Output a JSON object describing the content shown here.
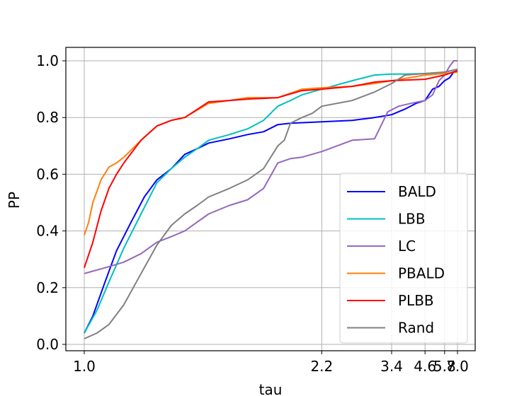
{
  "chart_data": {
    "type": "line",
    "xlabel": "tau",
    "ylabel": "PP",
    "xscale": "reciprocal",
    "xlim": [
      1.0,
      7.0
    ],
    "ylim": [
      0.0,
      1.0
    ],
    "xticks": [
      1.0,
      2.2,
      3.4,
      4.6,
      5.8,
      7.0
    ],
    "xtick_labels": [
      "1.0",
      "2.2",
      "3.4",
      "4.6",
      "5.8",
      "7.0"
    ],
    "yticks": [
      0.0,
      0.2,
      0.4,
      0.6,
      0.8,
      1.0
    ],
    "ytick_labels": [
      "0.0",
      "0.2",
      "0.4",
      "0.6",
      "0.8",
      "1.0"
    ],
    "grid": true,
    "legend_position": "lower-right",
    "series": [
      {
        "name": "BALD",
        "color": "#0000ff",
        "x": [
          1.0,
          1.02,
          1.05,
          1.08,
          1.12,
          1.16,
          1.2,
          1.25,
          1.3,
          1.35,
          1.4,
          1.5,
          1.6,
          1.7,
          1.8,
          1.9,
          2.2,
          2.6,
          3.0,
          3.4,
          3.8,
          4.2,
          4.6,
          5.0,
          5.4,
          5.8,
          6.2,
          6.6,
          7.0
        ],
        "y": [
          0.04,
          0.1,
          0.22,
          0.33,
          0.43,
          0.52,
          0.58,
          0.62,
          0.67,
          0.69,
          0.71,
          0.725,
          0.74,
          0.75,
          0.775,
          0.78,
          0.785,
          0.79,
          0.8,
          0.81,
          0.83,
          0.85,
          0.86,
          0.9,
          0.91,
          0.93,
          0.94,
          0.96,
          0.965
        ]
      },
      {
        "name": "LBB",
        "color": "#00bfbf",
        "x": [
          1.0,
          1.03,
          1.06,
          1.1,
          1.15,
          1.2,
          1.25,
          1.3,
          1.35,
          1.4,
          1.5,
          1.6,
          1.7,
          1.8,
          1.9,
          2.0,
          2.2,
          2.6,
          3.0,
          3.4,
          3.8,
          4.6,
          5.8,
          7.0
        ],
        "y": [
          0.04,
          0.12,
          0.22,
          0.34,
          0.46,
          0.57,
          0.62,
          0.66,
          0.69,
          0.72,
          0.74,
          0.76,
          0.79,
          0.84,
          0.86,
          0.88,
          0.9,
          0.93,
          0.95,
          0.953,
          0.953,
          0.955,
          0.96,
          0.97
        ]
      },
      {
        "name": "LC",
        "color": "#9467bd",
        "x": [
          1.0,
          1.05,
          1.1,
          1.15,
          1.2,
          1.25,
          1.3,
          1.4,
          1.5,
          1.6,
          1.7,
          1.8,
          1.9,
          2.0,
          2.2,
          2.6,
          3.0,
          3.3,
          3.6,
          4.0,
          4.6,
          5.0,
          5.4,
          5.8,
          6.2,
          6.6,
          7.0
        ],
        "y": [
          0.25,
          0.27,
          0.29,
          0.32,
          0.36,
          0.38,
          0.4,
          0.46,
          0.49,
          0.51,
          0.55,
          0.64,
          0.655,
          0.66,
          0.68,
          0.72,
          0.725,
          0.82,
          0.84,
          0.85,
          0.86,
          0.88,
          0.93,
          0.95,
          0.98,
          1.0,
          1.0
        ]
      },
      {
        "name": "PBALD",
        "color": "#ff7f0e",
        "x": [
          1.0,
          1.01,
          1.02,
          1.04,
          1.06,
          1.08,
          1.1,
          1.15,
          1.2,
          1.25,
          1.3,
          1.4,
          1.5,
          1.6,
          1.8,
          2.0,
          2.2,
          2.6,
          3.0,
          3.4,
          4.6,
          5.8,
          7.0
        ],
        "y": [
          0.385,
          0.43,
          0.5,
          0.58,
          0.625,
          0.64,
          0.66,
          0.72,
          0.77,
          0.79,
          0.8,
          0.85,
          0.86,
          0.87,
          0.87,
          0.9,
          0.905,
          0.91,
          0.92,
          0.93,
          0.95,
          0.955,
          0.96
        ]
      },
      {
        "name": "PLBB",
        "color": "#ff0000",
        "x": [
          1.0,
          1.02,
          1.04,
          1.06,
          1.08,
          1.1,
          1.15,
          1.2,
          1.25,
          1.3,
          1.4,
          1.5,
          1.6,
          1.8,
          2.0,
          2.2,
          2.6,
          3.0,
          3.4,
          4.6,
          5.8,
          7.0
        ],
        "y": [
          0.27,
          0.36,
          0.47,
          0.55,
          0.6,
          0.64,
          0.72,
          0.77,
          0.79,
          0.8,
          0.855,
          0.86,
          0.865,
          0.87,
          0.895,
          0.9,
          0.91,
          0.925,
          0.93,
          0.935,
          0.95,
          0.965
        ]
      },
      {
        "name": "Rand",
        "color": "#808080",
        "x": [
          1.0,
          1.03,
          1.06,
          1.1,
          1.15,
          1.2,
          1.25,
          1.3,
          1.35,
          1.4,
          1.5,
          1.6,
          1.7,
          1.8,
          1.85,
          1.9,
          2.0,
          2.1,
          2.2,
          2.6,
          3.0,
          3.4,
          3.8,
          4.6,
          5.8,
          7.0
        ],
        "y": [
          0.02,
          0.04,
          0.07,
          0.14,
          0.25,
          0.35,
          0.42,
          0.46,
          0.49,
          0.52,
          0.55,
          0.58,
          0.62,
          0.7,
          0.72,
          0.78,
          0.8,
          0.815,
          0.84,
          0.86,
          0.89,
          0.92,
          0.95,
          0.955,
          0.96,
          0.97
        ]
      }
    ]
  }
}
